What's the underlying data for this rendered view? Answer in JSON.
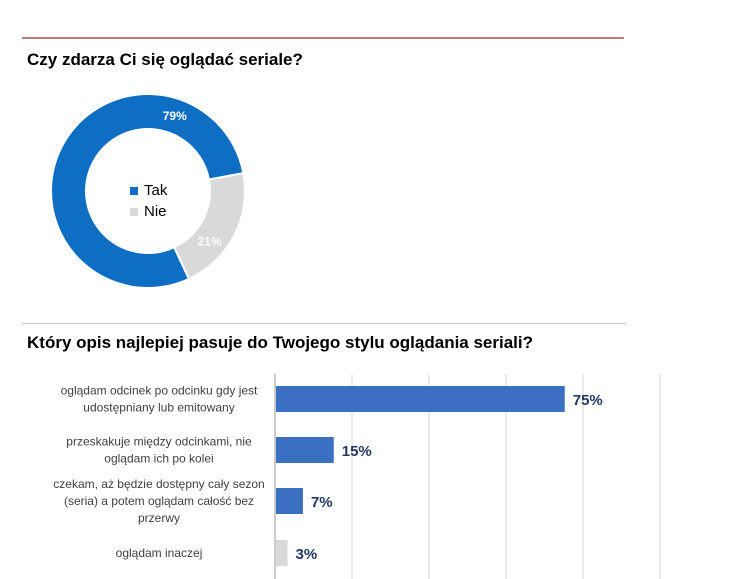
{
  "chart_data": [
    {
      "type": "pie",
      "title": "Czy zdarza Ci się oglądać seriale?",
      "categories": [
        "Tak",
        "Nie"
      ],
      "values": [
        79,
        21
      ],
      "value_labels": [
        "79%",
        "21%"
      ],
      "colors": [
        "#0e6ec4",
        "#d9d9d9"
      ],
      "label_colors": [
        "#ffffff",
        "#ffffff"
      ],
      "legend": "center"
    },
    {
      "type": "bar",
      "orientation": "horizontal",
      "title": "Który opis najlepiej pasuje do Twojego stylu oglądania seriali?",
      "categories": [
        [
          "oglądam odcinek po odcinku gdy jest",
          "udostępniany lub emitowany"
        ],
        [
          "przeskakuje między odcinkami, nie",
          "oglądam ich po kolei"
        ],
        [
          "czekam, aż będzie dostępny cały sezon",
          "(seria) a potem oglądam całość bez",
          "przerwy"
        ],
        [
          "oglądam inaczej"
        ]
      ],
      "values": [
        75,
        15,
        7,
        3
      ],
      "value_labels": [
        "75%",
        "15%",
        "7%",
        "3%"
      ],
      "colors": [
        "#3a6fc2",
        "#3a6fc2",
        "#3a6fc2",
        "#d9d9d9"
      ],
      "label_color": "#1f3864",
      "xlim": [
        0,
        100
      ],
      "grid": true
    }
  ]
}
